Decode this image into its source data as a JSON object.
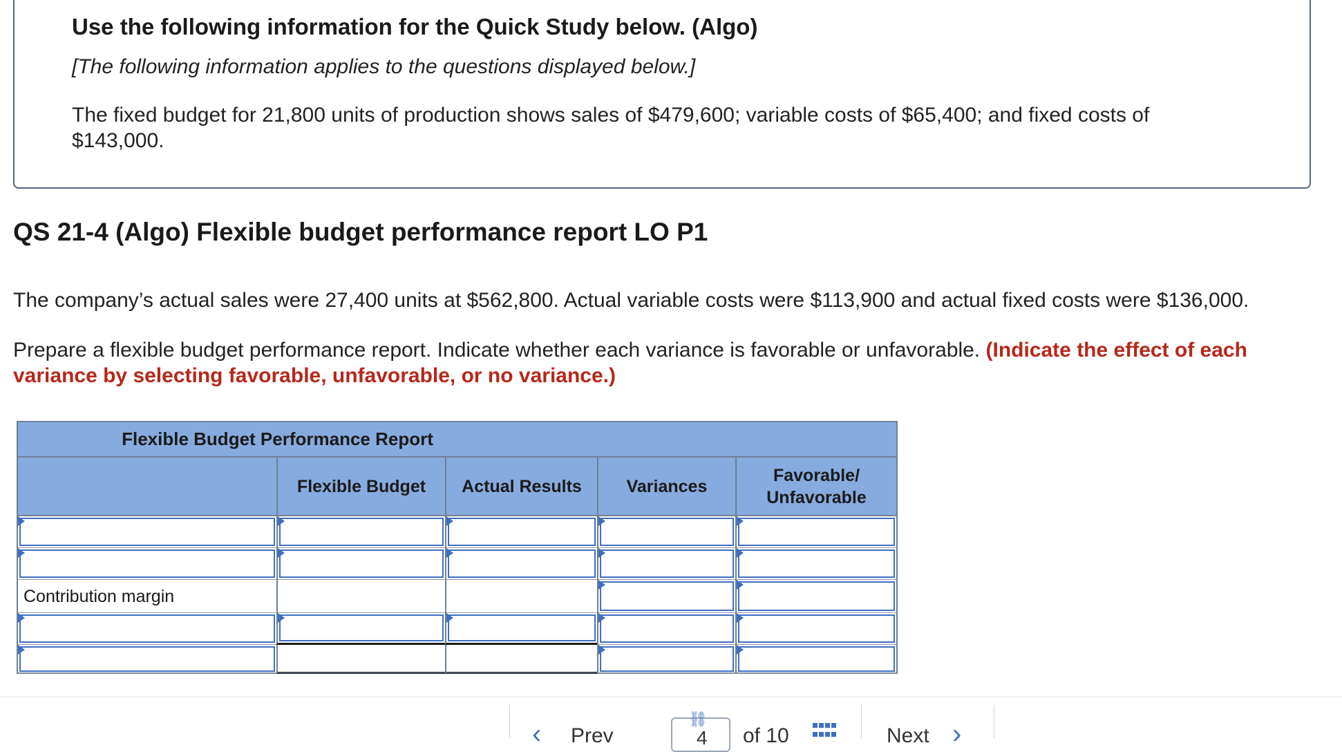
{
  "info": {
    "title": "Use the following information for the Quick Study below. (Algo)",
    "subtitle": "[The following information applies to the questions displayed below.]",
    "body": "The fixed budget for 21,800 units of production shows sales of $479,600; variable costs of $65,400; and fixed costs of $143,000."
  },
  "question": {
    "title": "QS 21-4 (Algo) Flexible budget performance report LO P1",
    "para1": "The company’s actual sales were 27,400 units at $562,800. Actual variable costs were $113,900 and actual fixed costs were $136,000.",
    "para2_plain": "Prepare a flexible budget performance report. Indicate whether each variance is favorable or unfavorable.",
    "para2_highlight": "(Indicate the effect of each variance by selecting favorable, unfavorable, or no variance.)"
  },
  "report": {
    "title": "Flexible Budget Performance Report",
    "columns": [
      "",
      "Flexible Budget",
      "Actual Results",
      "Variances",
      "Favorable/ Unfavorable"
    ],
    "row_labels": [
      "",
      "",
      "Contribution margin",
      "",
      ""
    ]
  },
  "nav": {
    "prev": "Prev",
    "page": "4",
    "of": "of 10",
    "next": "Next"
  },
  "colors": {
    "header_bg": "#86abdf",
    "input_border": "#3f6fc1",
    "highlight_text": "#b5281b"
  }
}
